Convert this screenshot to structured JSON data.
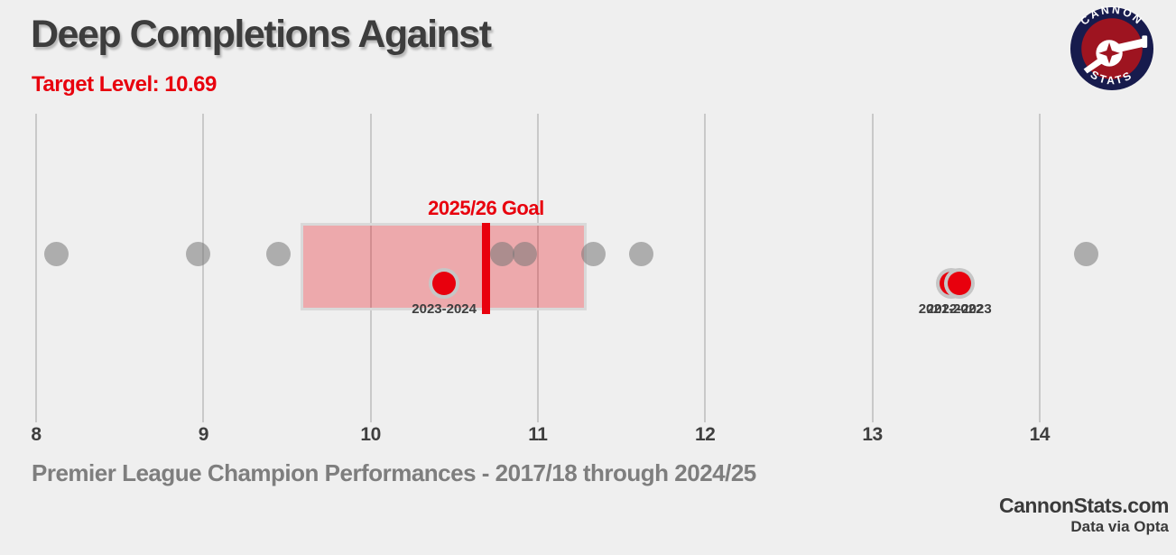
{
  "header": {
    "title": "Deep Completions Against",
    "subtitle": "Target Level: 10.69"
  },
  "logo": {
    "top": "CANNON",
    "bottom": "STATS",
    "navy": "#171b4d",
    "red": "#9e1420"
  },
  "footer": {
    "caption": "Premier League Champion Performances - 2017/18 through 2024/25",
    "brand": "CannonStats.com",
    "credit": "Data via Opta"
  },
  "chart_data": {
    "type": "scatter",
    "title": "Deep Completions Against",
    "xlabel": "",
    "ylabel": "",
    "target_level": 10.69,
    "xlim": [
      7.78,
      14.82
    ],
    "x_ticks": [
      8,
      9,
      10,
      11,
      12,
      13,
      14
    ],
    "grid": "vertical",
    "legend": "none",
    "goal_line": {
      "label": "2025/26 Goal",
      "value": 10.69,
      "color": "#e8000d"
    },
    "box_range": {
      "min": 9.58,
      "max": 11.29,
      "fill": "rgba(231,7,17,0.30)",
      "border": "#d9d9d9"
    },
    "series": [
      {
        "name": "champion-performances",
        "marker": "circle",
        "color": "#9a9a9a",
        "values": [
          8.12,
          8.97,
          9.45,
          10.79,
          10.92,
          11.33,
          11.62,
          14.28
        ]
      },
      {
        "name": "arsenal-seasons",
        "marker": "ringed-circle",
        "color": "#e8000d",
        "points": [
          {
            "season": "2021-2022",
            "value": 13.47
          },
          {
            "season": "2022-2023",
            "value": 13.52
          },
          {
            "season": "2023-2024",
            "value": 10.44
          }
        ]
      }
    ]
  }
}
